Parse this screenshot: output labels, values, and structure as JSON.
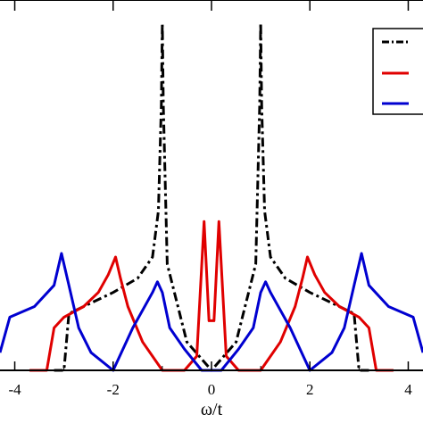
{
  "chart_data": {
    "type": "line",
    "xlabel": "ω/t",
    "ylabel": "",
    "title": "",
    "xlim": [
      -4.3,
      4.3
    ],
    "ylim": [
      0,
      1.0
    ],
    "xticks": [
      -4,
      -2,
      0,
      2,
      4
    ],
    "xtick_labels": [
      "-4",
      "-2",
      "0",
      "2",
      "4"
    ],
    "grid": false,
    "legend": {
      "position": "top-right",
      "entries": [
        "",
        "",
        ""
      ]
    },
    "series": [
      {
        "color": "#000000",
        "style": "dash-dot",
        "x": [
          -3.2,
          -3.0,
          -2.9,
          -2.6,
          -2.0,
          -1.5,
          -1.2,
          -1.08,
          -1.02,
          -1.0,
          -0.98,
          -0.9,
          -0.5,
          0.0,
          0.5,
          0.9,
          0.98,
          1.0,
          1.02,
          1.08,
          1.2,
          1.5,
          2.0,
          2.6,
          2.9,
          3.0,
          3.2
        ],
        "y": [
          0.0,
          0.0,
          0.16,
          0.18,
          0.22,
          0.26,
          0.32,
          0.45,
          0.75,
          0.98,
          0.75,
          0.3,
          0.08,
          0.0,
          0.08,
          0.3,
          0.75,
          0.98,
          0.75,
          0.45,
          0.32,
          0.26,
          0.22,
          0.18,
          0.16,
          0.0,
          0.0
        ]
      },
      {
        "color": "#e00000",
        "style": "solid",
        "x": [
          -3.7,
          -3.35,
          -3.2,
          -3.0,
          -2.6,
          -2.3,
          -2.1,
          -1.95,
          -1.85,
          -1.7,
          -1.4,
          -1.0,
          -0.55,
          -0.3,
          -0.15,
          -0.05,
          0.05,
          0.15,
          0.3,
          0.55,
          1.0,
          1.4,
          1.7,
          1.85,
          1.95,
          2.1,
          2.3,
          2.6,
          3.0,
          3.2,
          3.35,
          3.7
        ],
        "y": [
          0.0,
          0.0,
          0.12,
          0.15,
          0.18,
          0.22,
          0.27,
          0.32,
          0.26,
          0.18,
          0.08,
          0.0,
          0.0,
          0.04,
          0.42,
          0.14,
          0.14,
          0.42,
          0.04,
          0.0,
          0.0,
          0.08,
          0.18,
          0.26,
          0.32,
          0.27,
          0.22,
          0.18,
          0.15,
          0.12,
          0.0,
          0.0
        ]
      },
      {
        "color": "#0000d0",
        "style": "solid",
        "x": [
          -4.3,
          -4.1,
          -3.6,
          -3.2,
          -3.05,
          -2.9,
          -2.7,
          -2.45,
          -2.0,
          -1.6,
          -1.2,
          -1.1,
          -1.0,
          -0.85,
          -0.55,
          -0.2,
          0.0,
          0.2,
          0.55,
          0.85,
          1.0,
          1.1,
          1.2,
          1.6,
          2.0,
          2.45,
          2.7,
          2.9,
          3.05,
          3.2,
          3.6,
          4.1,
          4.3
        ],
        "y": [
          0.05,
          0.15,
          0.18,
          0.24,
          0.33,
          0.24,
          0.12,
          0.05,
          0.0,
          0.12,
          0.22,
          0.25,
          0.22,
          0.12,
          0.06,
          0.0,
          0.0,
          0.0,
          0.06,
          0.12,
          0.22,
          0.25,
          0.22,
          0.12,
          0.0,
          0.05,
          0.12,
          0.24,
          0.33,
          0.24,
          0.18,
          0.15,
          0.05
        ]
      }
    ]
  },
  "colors": {
    "axis": "#000000",
    "background": "#ffffff"
  }
}
